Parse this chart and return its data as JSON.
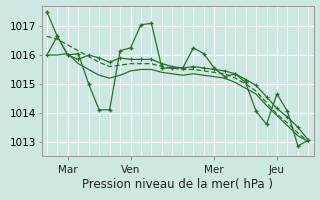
{
  "background_color": "#cde8e2",
  "plot_bg_color": "#cde8e2",
  "grid_color": "#ffffff",
  "line_color": "#2d6e2d",
  "xlabel": "Pression niveau de la mer( hPa )",
  "ylim": [
    1012.5,
    1017.7
  ],
  "yticks": [
    1013,
    1014,
    1015,
    1016,
    1017
  ],
  "xtick_labels": [
    "Mar",
    "Ven",
    "Mer",
    "Jeu"
  ],
  "xtick_positions": [
    2,
    8,
    16,
    22
  ],
  "n_points": 26,
  "tick_fontsize": 7.5,
  "label_fontsize": 8.5,
  "series_main": [
    1017.5,
    1016.65,
    1016.0,
    1016.05,
    1015.0,
    1014.1,
    1014.1,
    1016.15,
    1016.25,
    1017.05,
    1017.1,
    1015.55,
    1015.55,
    1015.55,
    1016.25,
    1016.05,
    1015.55,
    1015.25,
    1015.35,
    1015.05,
    1014.05,
    1013.6,
    1014.65,
    1014.05,
    1012.85,
    1013.05
  ],
  "series_trend1": [
    1016.0,
    1016.65,
    1016.0,
    1015.85,
    1016.0,
    1015.9,
    1015.75,
    1015.9,
    1015.85,
    1015.85,
    1015.85,
    1015.7,
    1015.6,
    1015.55,
    1015.6,
    1015.55,
    1015.5,
    1015.45,
    1015.35,
    1015.15,
    1014.95,
    1014.55,
    1014.15,
    1013.85,
    1013.5,
    1013.05
  ],
  "series_trend2": [
    1016.0,
    1016.0,
    1016.05,
    1015.7,
    1015.5,
    1015.3,
    1015.2,
    1015.3,
    1015.45,
    1015.5,
    1015.5,
    1015.4,
    1015.35,
    1015.3,
    1015.35,
    1015.3,
    1015.25,
    1015.2,
    1015.05,
    1014.85,
    1014.65,
    1014.25,
    1013.9,
    1013.55,
    1013.2,
    1013.0
  ],
  "series_upper": [
    1016.65,
    1016.55,
    1016.35,
    1016.15,
    1015.95,
    1015.75,
    1015.6,
    1015.65,
    1015.7,
    1015.7,
    1015.7,
    1015.6,
    1015.55,
    1015.5,
    1015.5,
    1015.45,
    1015.4,
    1015.35,
    1015.2,
    1015.0,
    1014.75,
    1014.35,
    1013.95,
    1013.65,
    1013.3,
    1013.0
  ]
}
